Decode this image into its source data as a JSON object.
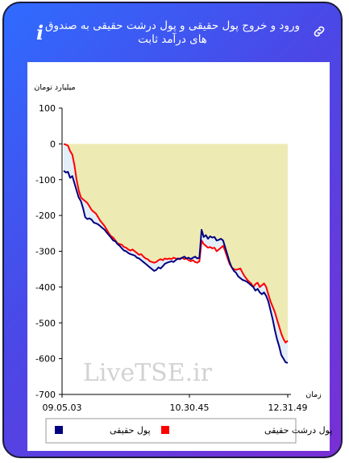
{
  "header": {
    "title": "ورود و خروج پول حقیقی و پول درشت حقیقی به صندوق های درآمد ثابت",
    "info_icon": "info-icon",
    "link_icon": "link-icon"
  },
  "watermark": "LiveTSE.ir",
  "colors": {
    "real_money": "#00007f",
    "big_real_money": "#ff0000",
    "fill": "#eeeab4",
    "fill_light": "#e3eef8"
  },
  "chart_data": {
    "type": "line",
    "ylabel": "میلیارد تومان",
    "xlabel": "زمان",
    "ylim": [
      -700,
      100
    ],
    "yticks": [
      100,
      0,
      -100,
      -200,
      -300,
      -400,
      -500,
      -600,
      -700
    ],
    "xticks": [
      "09.05.03",
      "10.30.45",
      "12.31.49"
    ],
    "legend_position": "bottom",
    "series": [
      {
        "name": "پول حقیقی",
        "color": "#00007f",
        "values": [
          -75,
          -80,
          -78,
          -95,
          -90,
          -110,
          -130,
          -150,
          -160,
          -180,
          -205,
          -210,
          -208,
          -212,
          -220,
          -222,
          -225,
          -230,
          -235,
          -240,
          -248,
          -255,
          -262,
          -270,
          -272,
          -280,
          -285,
          -292,
          -298,
          -300,
          -305,
          -308,
          -310,
          -312,
          -318,
          -320,
          -325,
          -330,
          -335,
          -340,
          -345,
          -350,
          -355,
          -352,
          -345,
          -348,
          -342,
          -335,
          -332,
          -330,
          -328,
          -330,
          -325,
          -320,
          -322,
          -318,
          -315,
          -320,
          -318,
          -322,
          -318,
          -315,
          -320,
          -318,
          -240,
          -260,
          -255,
          -265,
          -258,
          -262,
          -260,
          -270,
          -268,
          -265,
          -270,
          -290,
          -310,
          -330,
          -345,
          -355,
          -360,
          -370,
          -375,
          -380,
          -382,
          -385,
          -390,
          -395,
          -400,
          -410,
          -405,
          -415,
          -420,
          -415,
          -425,
          -440,
          -465,
          -490,
          -520,
          -545,
          -565,
          -590,
          -600,
          -610,
          -612
        ]
      },
      {
        "name": "پول درشت حقیقی",
        "color": "#ff0000",
        "values": [
          0,
          -2,
          -5,
          -20,
          -30,
          -60,
          -100,
          -130,
          -150,
          -155,
          -160,
          -165,
          -175,
          -185,
          -190,
          -195,
          -205,
          -215,
          -222,
          -230,
          -240,
          -250,
          -258,
          -262,
          -270,
          -278,
          -280,
          -282,
          -288,
          -290,
          -295,
          -298,
          -295,
          -300,
          -305,
          -310,
          -308,
          -315,
          -320,
          -322,
          -328,
          -330,
          -332,
          -330,
          -325,
          -322,
          -325,
          -320,
          -322,
          -320,
          -322,
          -318,
          -320,
          -322,
          -320,
          -318,
          -322,
          -320,
          -325,
          -328,
          -325,
          -330,
          -332,
          -328,
          -270,
          -280,
          -285,
          -290,
          -288,
          -292,
          -290,
          -300,
          -295,
          -290,
          -285,
          -300,
          -318,
          -335,
          -345,
          -350,
          -352,
          -350,
          -348,
          -360,
          -370,
          -378,
          -385,
          -390,
          -400,
          -392,
          -388,
          -400,
          -395,
          -390,
          -400,
          -420,
          -440,
          -455,
          -470,
          -490,
          -510,
          -530,
          -545,
          -555,
          -550
        ]
      }
    ]
  }
}
